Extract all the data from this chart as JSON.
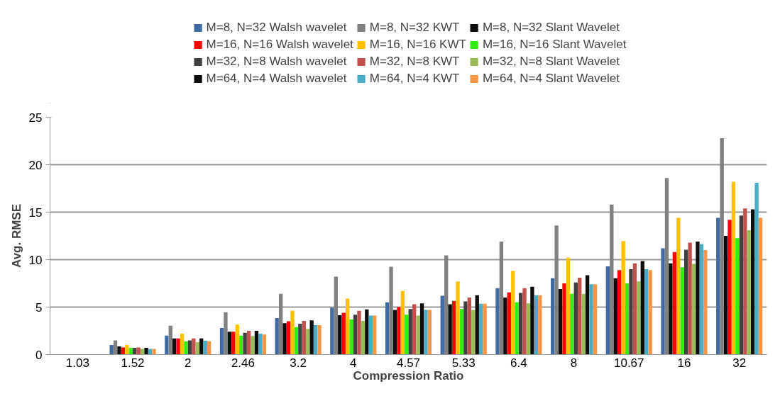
{
  "chart_data": {
    "type": "bar",
    "xlabel": "Compression Ratio",
    "ylabel": "Avg. RMSE",
    "categories": [
      "1.03",
      "1.52",
      "2",
      "2.46",
      "3.2",
      "4",
      "4.57",
      "5.33",
      "6.4",
      "8",
      "10.67",
      "16",
      "32"
    ],
    "ylim": [
      0,
      25
    ],
    "yticks": [
      0,
      5,
      10,
      15,
      20,
      25
    ],
    "grid": "y",
    "legend": "top",
    "series": [
      {
        "name": "M=8, N=32 Walsh wavelet",
        "color": "#416aa3",
        "values": [
          0,
          1.0,
          2.0,
          2.8,
          3.85,
          4.95,
          5.5,
          6.2,
          7.0,
          8.05,
          9.3,
          11.2,
          14.4
        ]
      },
      {
        "name": "M=8, N=32 KWT",
        "color": "#808080",
        "values": [
          0,
          1.5,
          3.05,
          4.45,
          6.4,
          8.2,
          9.25,
          10.45,
          11.9,
          13.6,
          15.8,
          18.6,
          22.8
        ]
      },
      {
        "name": "M=8, N=32 Slant Wavelet",
        "color": "#0d0d0d",
        "values": [
          0,
          0.85,
          1.7,
          2.4,
          3.3,
          4.15,
          4.7,
          5.3,
          6.0,
          6.9,
          8.05,
          9.6,
          12.5
        ]
      },
      {
        "name": "M=16, N=16 Walsh wavelet",
        "color": "#ff0000",
        "values": [
          0,
          0.75,
          1.7,
          2.4,
          3.5,
          4.4,
          5.0,
          5.65,
          6.55,
          7.5,
          8.9,
          10.8,
          14.2
        ]
      },
      {
        "name": "M=16, N=16 KWT",
        "color": "#ffc000",
        "values": [
          0,
          1.0,
          2.2,
          3.15,
          4.6,
          5.9,
          6.7,
          7.7,
          8.8,
          10.2,
          11.95,
          14.4,
          18.2
        ]
      },
      {
        "name": "M=16, N=16 Slant Wavelet",
        "color": "#33ee11",
        "values": [
          0,
          0.7,
          1.4,
          2.0,
          2.9,
          3.7,
          4.2,
          4.8,
          5.5,
          6.4,
          7.5,
          9.2,
          12.25
        ]
      },
      {
        "name": "M=32, N=8 Walsh wavelet",
        "color": "#404040",
        "values": [
          0,
          0.7,
          1.5,
          2.3,
          3.25,
          4.2,
          4.8,
          5.6,
          6.5,
          7.6,
          9.0,
          11.05,
          14.65
        ]
      },
      {
        "name": "M=32, N=8 KWT",
        "color": "#c0504d",
        "values": [
          0,
          0.75,
          1.7,
          2.5,
          3.55,
          4.6,
          5.3,
          6.0,
          7.0,
          8.1,
          9.6,
          11.8,
          15.4
        ]
      },
      {
        "name": "M=32, N=8 Slant Wavelet",
        "color": "#9bbb59",
        "values": [
          0,
          0.6,
          1.3,
          1.95,
          2.7,
          3.55,
          4.1,
          4.7,
          5.4,
          6.4,
          7.7,
          9.55,
          13.1
        ]
      },
      {
        "name": "M=64, N=4 Walsh wavelet",
        "color": "#0d0d0d",
        "values": [
          0,
          0.7,
          1.7,
          2.5,
          3.6,
          4.75,
          5.4,
          6.25,
          7.15,
          8.35,
          9.85,
          11.9,
          15.3
        ]
      },
      {
        "name": "M=64, N=4 KWT",
        "color": "#4bacc6",
        "values": [
          0,
          0.6,
          1.45,
          2.2,
          3.1,
          4.1,
          4.7,
          5.35,
          6.25,
          7.4,
          9.0,
          11.65,
          18.1
        ]
      },
      {
        "name": "M=64, N=4 Slant Wavelet",
        "color": "#f79646",
        "values": [
          0,
          0.6,
          1.4,
          2.1,
          3.1,
          4.1,
          4.7,
          5.35,
          6.25,
          7.4,
          8.9,
          11.0,
          14.4
        ]
      }
    ]
  }
}
